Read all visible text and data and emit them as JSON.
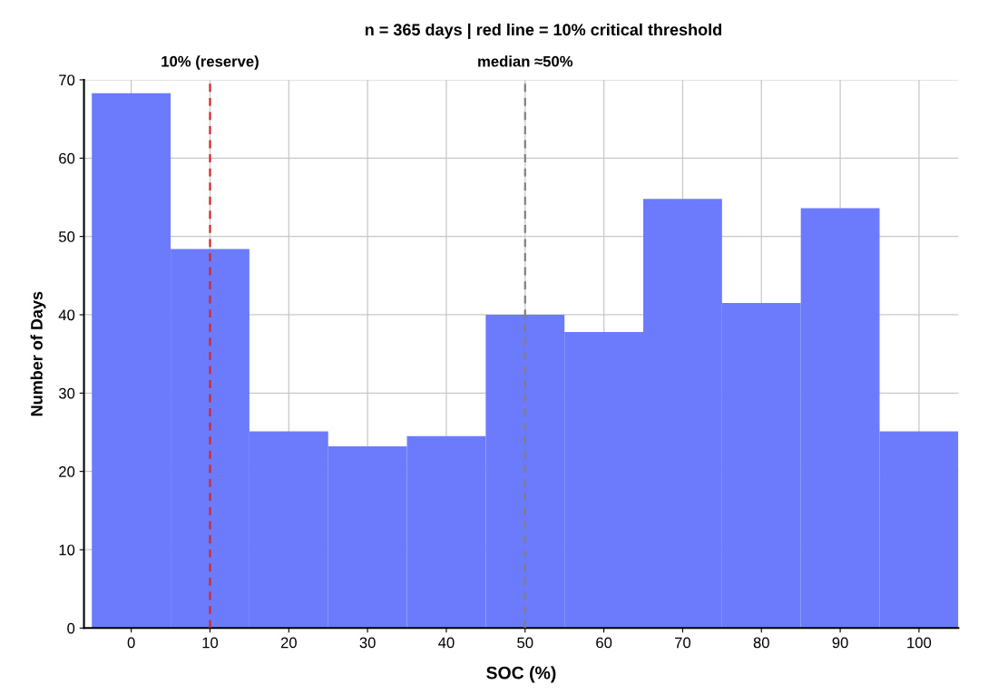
{
  "chart_data": {
    "type": "histogram",
    "title": "n = 365 days | red line = 10% critical threshold",
    "xlabel": "SOC (%)",
    "ylabel": "Number of Days",
    "bins": [
      -5,
      5,
      15,
      25,
      35,
      45,
      55,
      65,
      75,
      85,
      95,
      105
    ],
    "values": [
      68.3,
      48.4,
      25.1,
      23.2,
      24.5,
      40,
      37.8,
      54.8,
      41.5,
      53.6,
      25.1
    ],
    "color": "#6b7bfb",
    "xlim": [
      -6,
      105
    ],
    "ylim": [
      0,
      70
    ],
    "xticks": [
      0,
      10,
      20,
      30,
      40,
      50,
      60,
      70,
      80,
      90,
      100
    ],
    "yticks": [
      0,
      10,
      20,
      30,
      40,
      50,
      60,
      70
    ],
    "grid": true,
    "ref_lines": [
      {
        "axis": "x",
        "value": 10,
        "label": "10% (reserve)",
        "color": "#d62728",
        "line_style": "dashed"
      },
      {
        "axis": "x",
        "value": 50,
        "label": "median ≈50%",
        "color": "#808080",
        "line_style": "dashed"
      }
    ]
  }
}
